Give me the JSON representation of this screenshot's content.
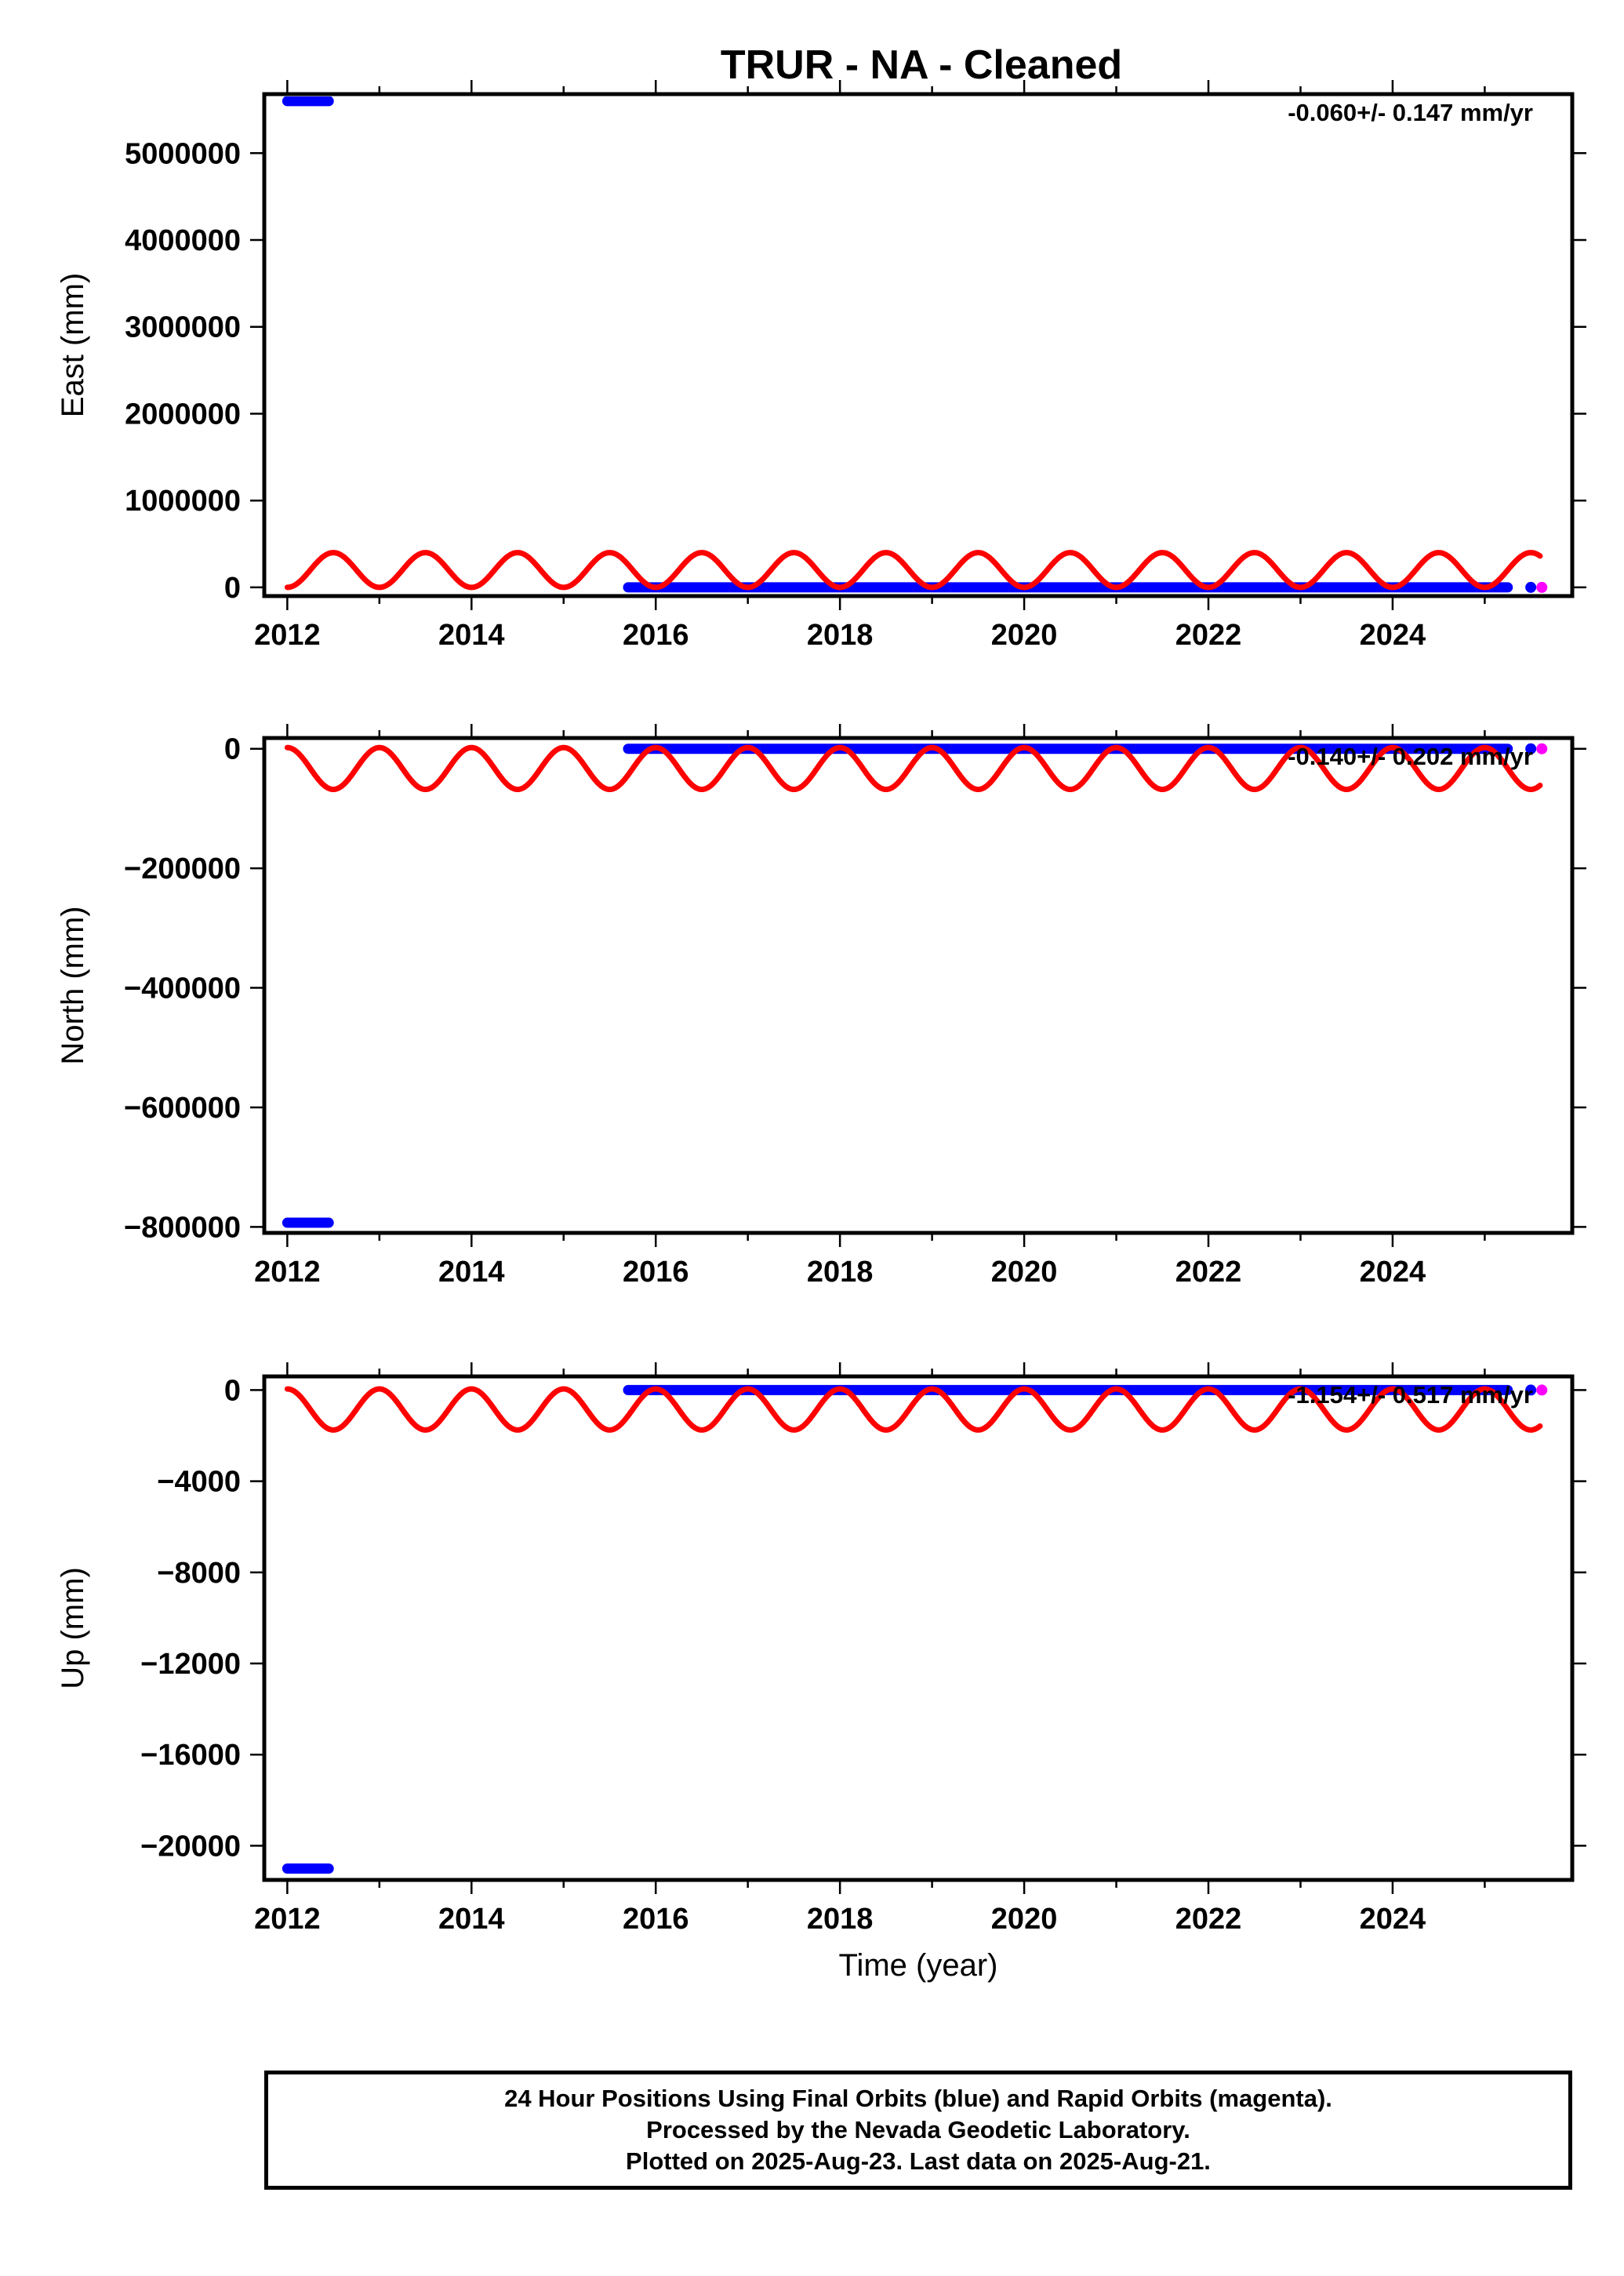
{
  "title": "TRUR  - NA - Cleaned",
  "footer": {
    "line1": "24 Hour Positions Using Final Orbits (blue) and Rapid Orbits (magenta).",
    "line2": "Processed by the Nevada Geodetic Laboratory.",
    "line3": "Plotted on 2025-Aug-23. Last data on 2025-Aug-21."
  },
  "colors": {
    "final_orbits": "#0000ff",
    "rapid_orbits": "#ff00ff",
    "seasonal_fit": "#ff0000"
  },
  "chart_data": [
    {
      "type": "scatter",
      "panel": "east",
      "xlabel": "",
      "ylabel": "East (mm)",
      "rate": "-0.060+/- 0.147 mm/yr",
      "xlim": [
        2011.75,
        2025.95
      ],
      "ylim": [
        -100000,
        5680000
      ],
      "x_ticks": [
        2012,
        2014,
        2016,
        2018,
        2020,
        2022,
        2024
      ],
      "y_ticks": [
        0,
        1000000,
        2000000,
        3000000,
        4000000,
        5000000
      ],
      "series": [
        {
          "name": "Final Orbits (blue)",
          "segments": [
            {
              "x_start": 2012.0,
              "x_end": 2012.45,
              "y": 5600000
            },
            {
              "x_start": 2015.7,
              "x_end": 2025.25,
              "y": 0
            }
          ],
          "points": [
            {
              "x": 2025.5,
              "y": 0
            }
          ]
        },
        {
          "name": "Rapid Orbits (magenta)",
          "points": [
            {
              "x": 2025.62,
              "y": 0
            }
          ]
        },
        {
          "fit": {
            "kind": "annual sinusoid",
            "x_start": 2012.0,
            "x_end": 2025.6,
            "mean": 200000,
            "amplitude": 200000,
            "period_years": 1.0,
            "phase_year": 2012.25
          }
        }
      ]
    },
    {
      "type": "scatter",
      "panel": "north",
      "xlabel": "",
      "ylabel": "North (mm)",
      "rate": "-0.140+/- 0.202 mm/yr",
      "xlim": [
        2011.75,
        2025.95
      ],
      "ylim": [
        -810000,
        18000
      ],
      "x_ticks": [
        2012,
        2014,
        2016,
        2018,
        2020,
        2022,
        2024
      ],
      "y_ticks": [
        0,
        -200000,
        -400000,
        -600000,
        -800000
      ],
      "series": [
        {
          "name": "Final Orbits (blue)",
          "segments": [
            {
              "x_start": 2012.0,
              "x_end": 2012.45,
              "y": -793000
            },
            {
              "x_start": 2015.7,
              "x_end": 2025.25,
              "y": 0
            }
          ],
          "points": [
            {
              "x": 2025.5,
              "y": 0
            }
          ]
        },
        {
          "name": "Rapid Orbits (magenta)",
          "points": [
            {
              "x": 2025.62,
              "y": 0
            }
          ]
        },
        {
          "fit": {
            "kind": "annual sinusoid",
            "x_start": 2012.0,
            "x_end": 2025.6,
            "mean": -33000,
            "amplitude": -35000,
            "period_years": 1.0,
            "phase_year": 2012.25
          }
        }
      ]
    },
    {
      "type": "scatter",
      "panel": "up",
      "xlabel": "Time (year)",
      "ylabel": "Up (mm)",
      "rate": "-1.154+/- 0.517 mm/yr",
      "xlim": [
        2011.75,
        2025.95
      ],
      "ylim": [
        -21500,
        600
      ],
      "x_ticks": [
        2012,
        2014,
        2016,
        2018,
        2020,
        2022,
        2024
      ],
      "y_ticks": [
        0,
        -4000,
        -8000,
        -12000,
        -16000,
        -20000
      ],
      "series": [
        {
          "name": "Final Orbits (blue)",
          "segments": [
            {
              "x_start": 2012.0,
              "x_end": 2012.45,
              "y": -21000
            },
            {
              "x_start": 2015.7,
              "x_end": 2025.25,
              "y": 0
            }
          ],
          "points": [
            {
              "x": 2025.5,
              "y": 0
            }
          ]
        },
        {
          "name": "Rapid Orbits (magenta)",
          "points": [
            {
              "x": 2025.62,
              "y": 0
            }
          ]
        },
        {
          "fit": {
            "kind": "annual sinusoid",
            "x_start": 2012.0,
            "x_end": 2025.6,
            "mean": -850,
            "amplitude": -900,
            "period_years": 1.0,
            "phase_year": 2012.25
          }
        }
      ]
    }
  ]
}
